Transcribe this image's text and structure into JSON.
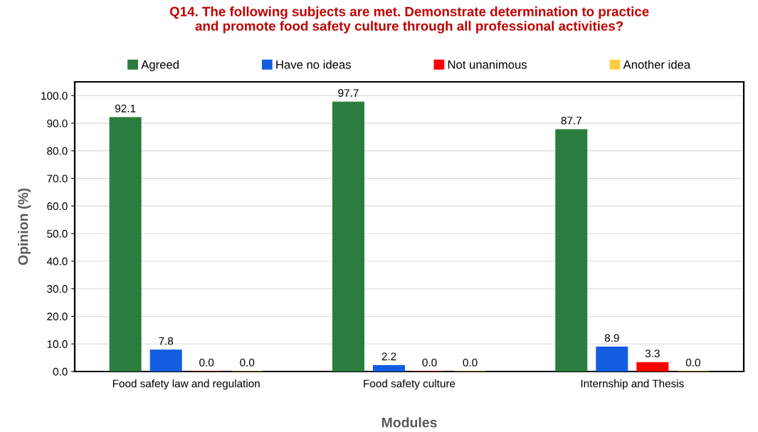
{
  "chart_data": {
    "type": "bar",
    "title": "Q14. The following subjects are met. Demonstrate determination to practice\nand promote food safety culture through all professional activities?",
    "xlabel": "Modules",
    "ylabel": "Opinion (%)",
    "categories": [
      "Food safety law and regulation",
      "Food safety culture",
      "Internship and Thesis"
    ],
    "series": [
      {
        "name": "Agreed",
        "color": "#2a7d3f",
        "values": [
          92.1,
          97.7,
          87.7
        ],
        "value_labels": [
          "92.1",
          "97.7",
          "87.7"
        ]
      },
      {
        "name": "Have no ideas",
        "color": "#125de0",
        "values": [
          7.8,
          2.2,
          8.9
        ],
        "value_labels": [
          "7.8",
          "2.2",
          "8.9"
        ]
      },
      {
        "name": "Not unanimous",
        "color": "#ff0000",
        "values": [
          0.0,
          0.0,
          3.3
        ],
        "value_labels": [
          "0.0",
          "0.0",
          "3.3"
        ]
      },
      {
        "name": "Another idea",
        "color": "#ffcc44",
        "values": [
          0.0,
          0.0,
          0.0
        ],
        "value_labels": [
          "0.0",
          "0.0",
          "0.0"
        ]
      }
    ],
    "ylim": [
      0,
      105
    ],
    "yticks": [
      {
        "value": 0,
        "label": "0.0"
      },
      {
        "value": 10,
        "label": "10.0"
      },
      {
        "value": 20,
        "label": "20.0"
      },
      {
        "value": 30,
        "label": "30.0"
      },
      {
        "value": 40,
        "label": "40.0"
      },
      {
        "value": 50,
        "label": "50.0"
      },
      {
        "value": 60,
        "label": "60.0"
      },
      {
        "value": 70,
        "label": "70.0"
      },
      {
        "value": 80,
        "label": "80.0"
      },
      {
        "value": 90,
        "label": "90.0"
      },
      {
        "value": 100,
        "label": "100.0"
      }
    ],
    "grid": "y",
    "legend": "top"
  }
}
